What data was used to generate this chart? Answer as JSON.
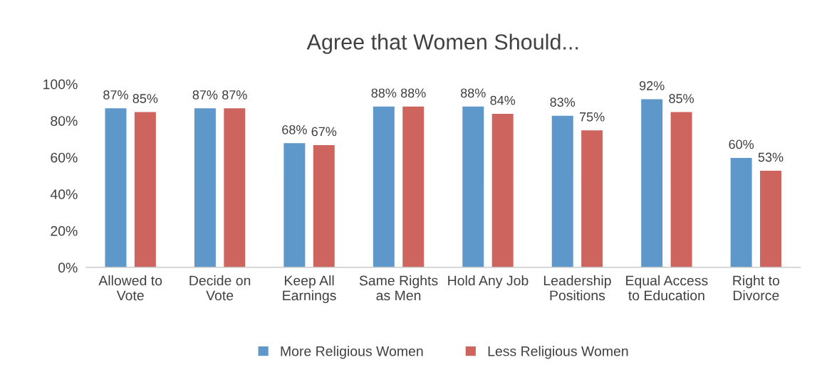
{
  "chart_data": {
    "type": "bar",
    "title": "Agree that Women Should...",
    "categories": [
      "Allowed to\nVote",
      "Decide on\nVote",
      "Keep All\nEarnings",
      "Same Rights\nas Men",
      "Hold Any Job",
      "Leadership\nPositions",
      "Equal Access\nto Education",
      "Right to\nDivorce"
    ],
    "series": [
      {
        "name": "More Religious Women",
        "color": "#5e97c9",
        "values": [
          87,
          87,
          68,
          88,
          88,
          83,
          92,
          60
        ],
        "value_labels": [
          "87%",
          "87%",
          "68%",
          "88%",
          "88%",
          "83%",
          "92%",
          "60%"
        ]
      },
      {
        "name": "Less Religious Women",
        "color": "#cd645e",
        "values": [
          85,
          87,
          67,
          88,
          84,
          75,
          85,
          53
        ],
        "value_labels": [
          "85%",
          "87%",
          "67%",
          "88%",
          "84%",
          "75%",
          "85%",
          "53%"
        ]
      }
    ],
    "ylim": [
      0,
      100
    ],
    "yticks": [
      {
        "value": 0,
        "label": "0%"
      },
      {
        "value": 20,
        "label": "20%"
      },
      {
        "value": 40,
        "label": "40%"
      },
      {
        "value": 60,
        "label": "60%"
      },
      {
        "value": 80,
        "label": "80%"
      },
      {
        "value": 100,
        "label": "100%"
      }
    ],
    "grid": false,
    "legend": "bottom"
  }
}
